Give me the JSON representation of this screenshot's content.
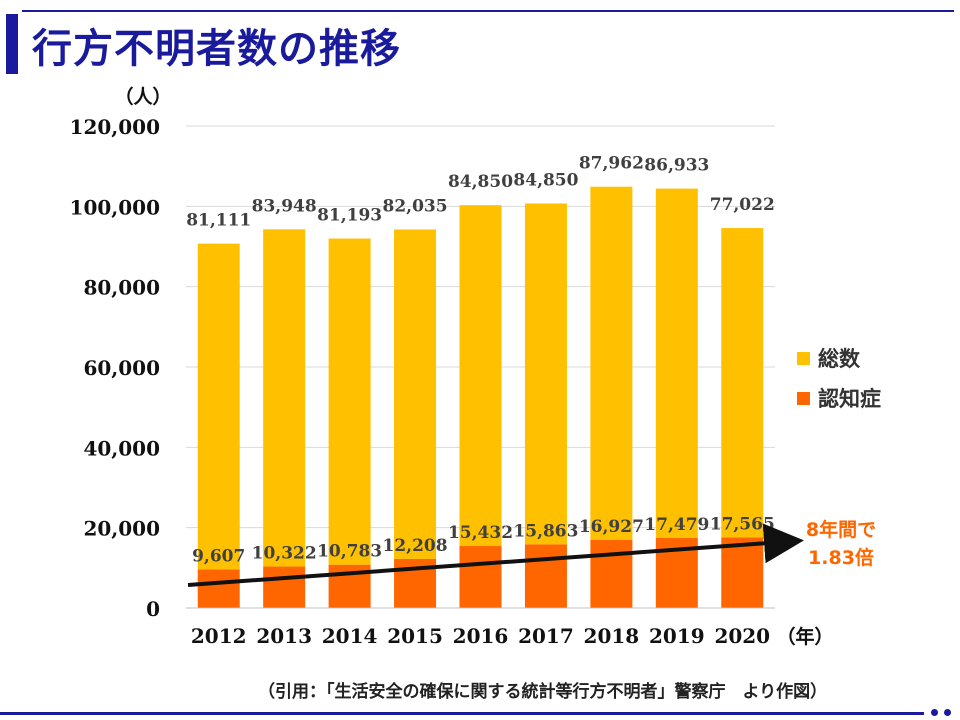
{
  "header": {
    "title": "行方不明者数の推移"
  },
  "chart_data": {
    "type": "bar",
    "stacked": true,
    "categories": [
      "2012",
      "2013",
      "2014",
      "2015",
      "2016",
      "2017",
      "2018",
      "2019",
      "2020"
    ],
    "series": [
      {
        "name": "認知症",
        "color": "#ff6600",
        "values": [
          9607,
          10322,
          10783,
          12208,
          15432,
          15863,
          16927,
          17479,
          17565
        ],
        "labels": [
          "9,607",
          "10,322",
          "10,783",
          "12,208",
          "15,432",
          "15,863",
          "16,927",
          "17,479",
          "17,565"
        ]
      },
      {
        "name": "総数",
        "color": "#ffc000",
        "values": [
          81111,
          83948,
          81193,
          82035,
          84850,
          84850,
          87962,
          86933,
          77022
        ],
        "labels": [
          "81,111",
          "83,948",
          "81,193",
          "82,035",
          "84,850",
          "84,850",
          "87,962",
          "86,933",
          "77,022"
        ]
      }
    ],
    "y_unit": "（人）",
    "x_unit": "（年）",
    "ylim": [
      0,
      120000
    ],
    "y_ticks": [
      "0",
      "20,000",
      "40,000",
      "60,000",
      "80,000",
      "100,000",
      "120,000"
    ],
    "grid": true,
    "legend": {
      "placement": "right",
      "entries": [
        "総数",
        "認知症"
      ]
    },
    "trend_annotation": [
      "8年間で",
      "1.83倍"
    ]
  },
  "footer": {
    "citation": "（引用：「生活安全の確保に関する統計等行方不明者」警察庁　より作図）"
  }
}
